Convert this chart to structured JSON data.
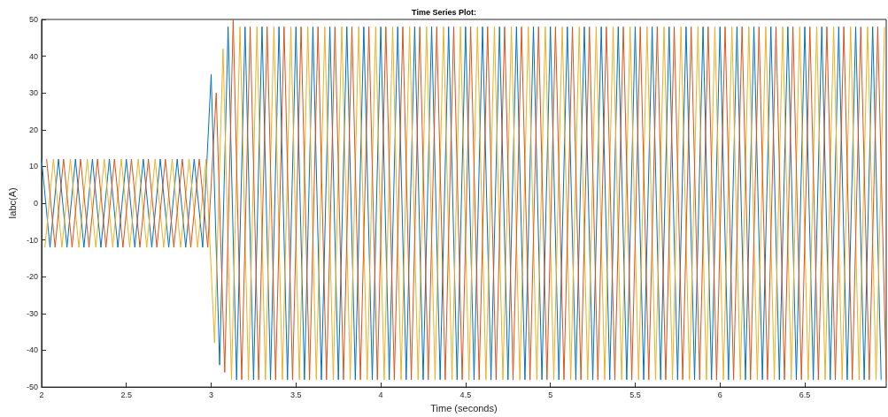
{
  "chart_data": {
    "type": "line",
    "title": "Time Series Plot:",
    "xlabel": "Time (seconds)",
    "ylabel": "Iabc(A)",
    "xlim": [
      2,
      6.98
    ],
    "xticks": [
      2,
      2.5,
      3,
      3.5,
      4,
      4.5,
      5,
      5.5,
      6,
      6.5
    ],
    "ylim": [
      -50,
      50
    ],
    "yticks": [
      -50,
      -40,
      -30,
      -20,
      -10,
      0,
      10,
      20,
      30,
      40,
      50
    ],
    "grid": false,
    "marker": "none",
    "line_style": "solid",
    "series": [
      {
        "color": "#0072bd",
        "x": [
          2,
          2.05,
          2.1,
          2.15,
          2.2,
          2.25,
          2.3,
          2.35,
          2.4,
          2.45,
          2.5,
          2.55,
          2.6,
          2.65,
          2.7,
          2.75,
          2.8,
          2.85,
          2.9,
          2.95,
          3,
          3.05,
          3.1,
          3.15,
          3.2,
          3.25,
          3.3,
          3.35,
          3.4,
          3.45,
          3.5,
          3.55,
          3.6,
          3.65,
          3.7,
          3.75,
          3.8,
          3.85,
          3.9,
          3.95,
          4,
          4.05,
          4.1,
          4.15,
          4.2,
          4.25,
          4.3,
          4.35,
          4.4,
          4.45,
          4.5,
          4.55,
          4.6,
          4.65,
          4.7,
          4.75,
          4.8,
          4.85,
          4.9,
          4.95,
          5,
          5.05,
          5.1,
          5.15,
          5.2,
          5.25,
          5.3,
          5.35,
          5.4,
          5.45,
          5.5,
          5.55,
          5.6,
          5.65,
          5.7,
          5.75,
          5.8,
          5.85,
          5.9,
          5.95,
          6,
          6.05,
          6.1,
          6.15,
          6.2,
          6.25,
          6.3,
          6.35,
          6.4,
          6.45,
          6.5,
          6.55,
          6.6,
          6.65,
          6.7,
          6.75,
          6.8,
          6.85,
          6.9,
          6.95
        ],
        "values": [
          12,
          -12,
          12,
          -12,
          12,
          -12,
          12,
          -12,
          12,
          -12,
          12,
          -12,
          12,
          -12,
          12,
          -12,
          12,
          -12,
          12,
          -12,
          35,
          -44,
          48,
          -48,
          48,
          -48,
          48,
          -48,
          48,
          -48,
          48,
          -48,
          48,
          -48,
          48,
          -48,
          48,
          -48,
          48,
          -48,
          48,
          -48,
          48,
          -48,
          48,
          -48,
          48,
          -48,
          48,
          -48,
          48,
          -48,
          48,
          -48,
          48,
          -48,
          48,
          -48,
          48,
          -48,
          48,
          -48,
          48,
          -48,
          48,
          -48,
          48,
          -48,
          48,
          -48,
          48,
          -48,
          48,
          -48,
          48,
          -48,
          48,
          -48,
          48,
          -48,
          48,
          -48,
          48,
          -48,
          48,
          -48,
          48,
          -48,
          48,
          -48,
          48,
          -48,
          48,
          -48,
          48,
          -48,
          48,
          -48,
          48,
          -48
        ]
      },
      {
        "color": "#edb120",
        "x": [
          2.02,
          2.07,
          2.12,
          2.17,
          2.22,
          2.27,
          2.32,
          2.37,
          2.42,
          2.47,
          2.52,
          2.57,
          2.62,
          2.67,
          2.72,
          2.77,
          2.82,
          2.87,
          2.92,
          2.97,
          3.02,
          3.07,
          3.12,
          3.17,
          3.22,
          3.27,
          3.32,
          3.37,
          3.42,
          3.47,
          3.52,
          3.57,
          3.62,
          3.67,
          3.72,
          3.77,
          3.82,
          3.87,
          3.92,
          3.97,
          4.02,
          4.07,
          4.12,
          4.17,
          4.22,
          4.27,
          4.32,
          4.37,
          4.42,
          4.47,
          4.52,
          4.57,
          4.62,
          4.67,
          4.72,
          4.77,
          4.82,
          4.87,
          4.92,
          4.97,
          5.02,
          5.07,
          5.12,
          5.17,
          5.22,
          5.27,
          5.32,
          5.37,
          5.42,
          5.47,
          5.52,
          5.57,
          5.62,
          5.67,
          5.72,
          5.77,
          5.82,
          5.87,
          5.92,
          5.97,
          6.02,
          6.07,
          6.12,
          6.17,
          6.22,
          6.27,
          6.32,
          6.37,
          6.42,
          6.47,
          6.52,
          6.57,
          6.62,
          6.67,
          6.72,
          6.77,
          6.82,
          6.87,
          6.92,
          6.97
        ],
        "values": [
          -12,
          12,
          -12,
          12,
          -12,
          12,
          -12,
          12,
          -12,
          12,
          -12,
          12,
          -12,
          12,
          -12,
          12,
          -12,
          12,
          -12,
          12,
          -38,
          42,
          -48,
          48,
          -48,
          48,
          -48,
          48,
          -48,
          48,
          -48,
          48,
          -48,
          48,
          -48,
          48,
          -48,
          48,
          -48,
          48,
          -48,
          48,
          -48,
          48,
          -48,
          48,
          -48,
          48,
          -48,
          48,
          -48,
          48,
          -48,
          48,
          -48,
          48,
          -48,
          48,
          -48,
          48,
          -48,
          48,
          -48,
          48,
          -48,
          48,
          -48,
          48,
          -48,
          48,
          -48,
          48,
          -48,
          48,
          -48,
          48,
          -48,
          48,
          -48,
          48,
          -48,
          48,
          -48,
          48,
          -48,
          48,
          -48,
          48,
          -48,
          48,
          -48,
          48,
          -48,
          48,
          -48,
          48,
          -48,
          48,
          -48,
          48
        ]
      },
      {
        "color": "#d95319",
        "x": [
          2.03,
          2.08,
          2.13,
          2.18,
          2.23,
          2.28,
          2.33,
          2.38,
          2.43,
          2.48,
          2.53,
          2.58,
          2.63,
          2.68,
          2.73,
          2.78,
          2.83,
          2.88,
          2.93,
          2.98,
          3.03,
          3.08,
          3.13,
          3.18,
          3.23,
          3.28,
          3.33,
          3.38,
          3.43,
          3.48,
          3.53,
          3.58,
          3.63,
          3.68,
          3.73,
          3.78,
          3.83,
          3.88,
          3.93,
          3.98,
          4.03,
          4.08,
          4.13,
          4.18,
          4.23,
          4.28,
          4.33,
          4.38,
          4.43,
          4.48,
          4.53,
          4.58,
          4.63,
          4.68,
          4.73,
          4.78,
          4.83,
          4.88,
          4.93,
          4.98,
          5.03,
          5.08,
          5.13,
          5.18,
          5.23,
          5.28,
          5.33,
          5.38,
          5.43,
          5.48,
          5.53,
          5.58,
          5.63,
          5.68,
          5.73,
          5.78,
          5.83,
          5.88,
          5.93,
          5.98,
          6.03,
          6.08,
          6.13,
          6.18,
          6.23,
          6.28,
          6.33,
          6.38,
          6.43,
          6.48,
          6.53,
          6.58,
          6.63,
          6.68,
          6.73,
          6.78,
          6.83,
          6.88,
          6.93,
          6.98
        ],
        "values": [
          12,
          -12,
          12,
          -12,
          12,
          -12,
          12,
          -12,
          12,
          -12,
          12,
          -12,
          12,
          -12,
          12,
          -12,
          12,
          -12,
          12,
          -12,
          30,
          -46,
          50,
          -48,
          48,
          -48,
          48,
          -48,
          48,
          -48,
          48,
          -48,
          48,
          -48,
          48,
          -48,
          48,
          -48,
          48,
          -48,
          48,
          -48,
          48,
          -48,
          48,
          -48,
          48,
          -48,
          48,
          -48,
          48,
          -48,
          48,
          -48,
          48,
          -48,
          48,
          -48,
          48,
          -48,
          48,
          -48,
          48,
          -48,
          48,
          -48,
          48,
          -48,
          48,
          -48,
          48,
          -48,
          48,
          -48,
          48,
          -48,
          48,
          -48,
          48,
          -48,
          48,
          -48,
          48,
          -48,
          48,
          -48,
          48,
          -48,
          48,
          -48,
          48,
          -48,
          48,
          -48,
          48,
          -48,
          48,
          -48,
          48,
          -48
        ]
      }
    ]
  }
}
